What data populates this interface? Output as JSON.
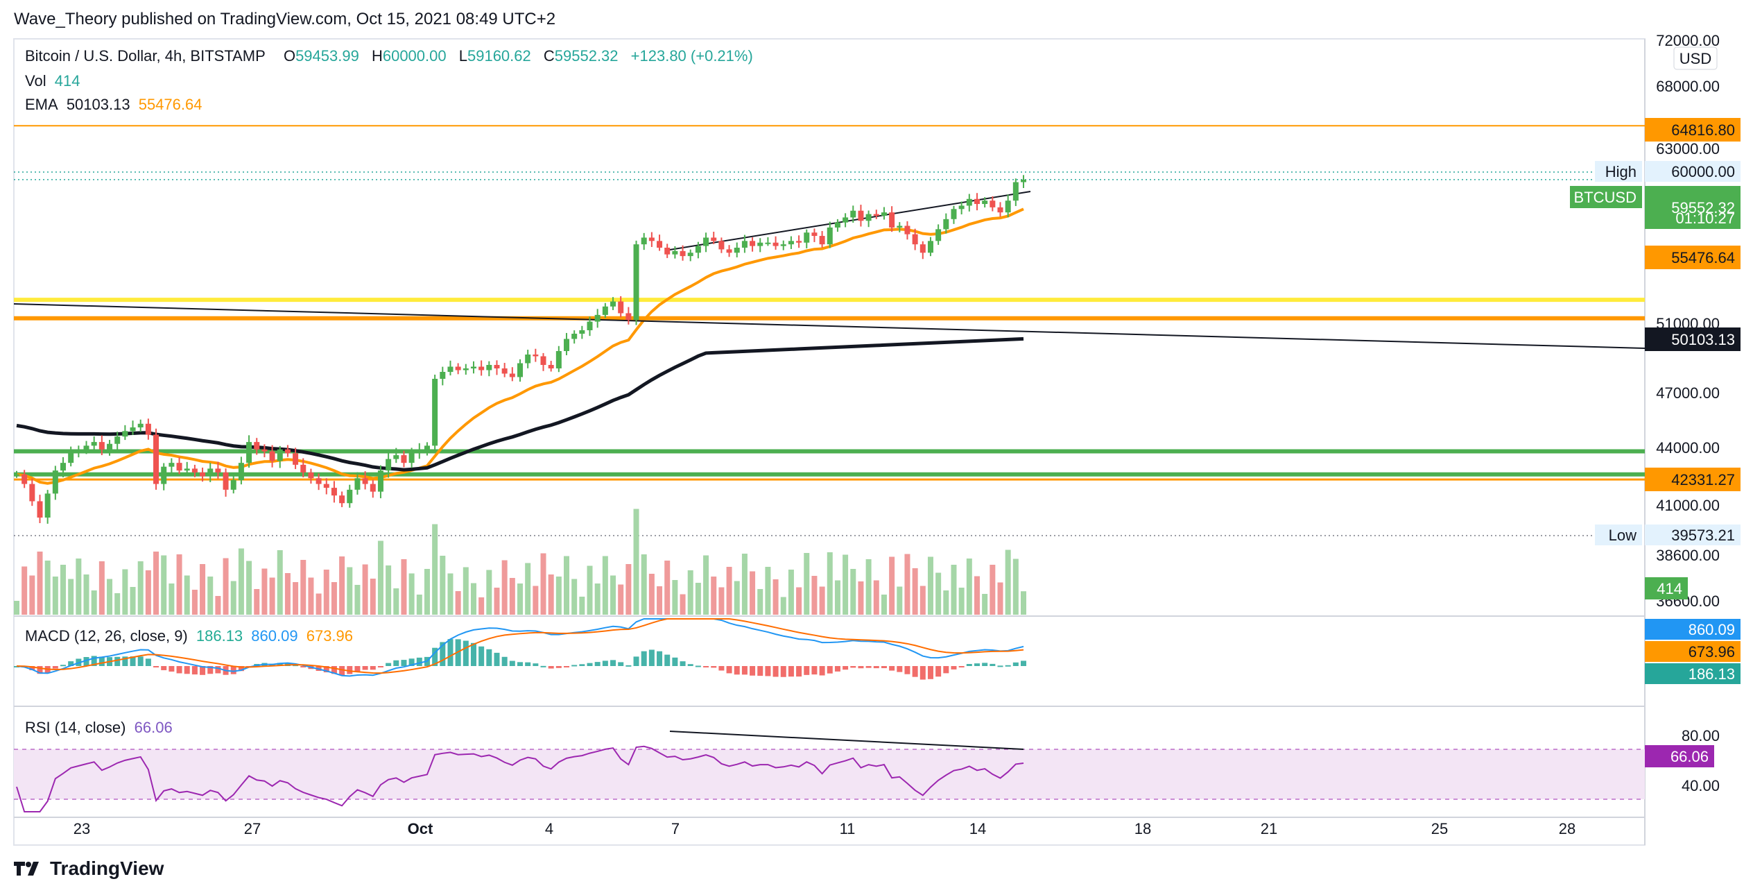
{
  "header": {
    "published": "Wave_Theory published on TradingView.com, Oct 15, 2021 08:49 UTC+2"
  },
  "legend": {
    "symbol": "Bitcoin / U.S. Dollar, 4h, BITSTAMP",
    "o_label": "O",
    "o": "59453.99",
    "h_label": "H",
    "h": "60000.00",
    "l_label": "L",
    "l": "59160.62",
    "c_label": "C",
    "c": "59552.32",
    "change": "+123.80 (+0.21%)",
    "vol_label": "Vol",
    "vol": "414",
    "ema_label": "EMA",
    "ema1": "50103.13",
    "ema2": "55476.64"
  },
  "macd_legend": {
    "label": "MACD (12, 26, close, 9)",
    "hist": "186.13",
    "macd": "860.09",
    "signal": "673.96"
  },
  "rsi_legend": {
    "label": "RSI (14, close)",
    "value": "66.06"
  },
  "footer": {
    "brand": "TradingView"
  },
  "colors": {
    "up": "#26a69a",
    "down": "#ef5350",
    "up_candle": "#4caf50",
    "ema_fast": "#ff9800",
    "ema_slow": "#131722",
    "yellow": "#ffeb3b",
    "orange_line": "#ff9800",
    "green_line": "#4caf50",
    "rsi": "#9c27b0",
    "macd": "#2196f3",
    "signal": "#ff6d00"
  },
  "chart_data": {
    "type": "candlestick",
    "title": "Bitcoin / U.S. Dollar, 4h, BITSTAMP",
    "currency": "USD",
    "price_axis_ticks": [
      "72000.00",
      "68000.00",
      "63000.00",
      "60000.00",
      "51000.00",
      "47000.00",
      "44000.00",
      "41000.00",
      "38600.00",
      "36600.00"
    ],
    "time_axis_ticks": [
      "23",
      "27",
      "Oct",
      "4",
      "7",
      "11",
      "14",
      "18",
      "21",
      "25",
      "28"
    ],
    "price_labels": [
      {
        "text": "64816.80",
        "kind": "orange"
      },
      {
        "text": "High",
        "value": "60000.00",
        "kind": "plain"
      },
      {
        "text": "BTCUSD",
        "kind": "green-tag"
      },
      {
        "text": "59552.32",
        "sub": "01:10:27",
        "kind": "green"
      },
      {
        "text": "55476.64",
        "kind": "orange"
      },
      {
        "text": "50103.13",
        "kind": "black"
      },
      {
        "text": "42331.27",
        "kind": "orange"
      },
      {
        "text": "Low",
        "value": "39573.21",
        "kind": "plain"
      },
      {
        "text": "414",
        "kind": "green"
      }
    ],
    "horizontal_levels": [
      {
        "price": 64816.8,
        "color": "orange"
      },
      {
        "price": 52400,
        "color": "yellow"
      },
      {
        "price": 51300,
        "color": "orange"
      },
      {
        "price": 43800,
        "color": "green"
      },
      {
        "price": 42600,
        "color": "green"
      },
      {
        "price": 42331.27,
        "color": "orange"
      }
    ],
    "high": 60000.0,
    "low": 39573.21,
    "last": 59552.32,
    "ema_fast_last": 55476.64,
    "ema_slow_last": 50103.13,
    "close_series": [
      42600,
      42100,
      41200,
      40400,
      41600,
      42800,
      43200,
      43700,
      43900,
      44100,
      44300,
      43900,
      44200,
      44600,
      44900,
      45100,
      45300,
      44700,
      42100,
      43000,
      43200,
      42800,
      42900,
      42700,
      42500,
      42900,
      42700,
      41800,
      42300,
      43200,
      44300,
      43900,
      43800,
      43300,
      43900,
      43700,
      43100,
      42700,
      42400,
      42100,
      41900,
      41500,
      41100,
      41800,
      42400,
      42100,
      41700,
      42800,
      43400,
      43600,
      43200,
      43700,
      43900,
      44100,
      47800,
      48200,
      48500,
      48300,
      48400,
      48500,
      48300,
      48600,
      48400,
      48100,
      47900,
      48700,
      49200,
      49100,
      48600,
      48400,
      49400,
      50100,
      50400,
      50600,
      51100,
      51500,
      52000,
      52300,
      51600,
      51200,
      55700,
      56100,
      55900,
      55500,
      55100,
      55300,
      55000,
      55200,
      55600,
      56100,
      55900,
      55400,
      55200,
      55500,
      55900,
      55600,
      55800,
      55800,
      55600,
      55700,
      55900,
      55800,
      56400,
      56200,
      55700,
      56700,
      57000,
      57300,
      57700,
      57100,
      57500,
      57400,
      57600,
      56700,
      56800,
      56300,
      55700,
      55200,
      55900,
      56600,
      57200,
      57800,
      58000,
      58400,
      58100,
      58300,
      57900,
      57600,
      58300,
      59400,
      59552
    ],
    "rsi_levels": [
      80,
      40
    ],
    "rsi_axis_ticks": [
      "80.00",
      "40.00"
    ]
  }
}
